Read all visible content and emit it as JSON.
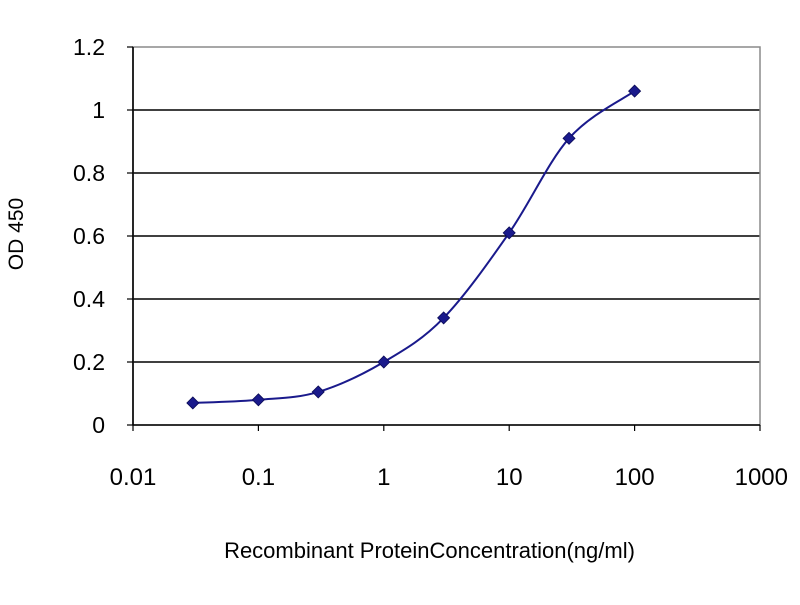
{
  "chart_data": {
    "type": "scatter",
    "title": "",
    "xlabel": "Recombinant ProteinConcentration(ng/ml)",
    "ylabel": "OD 450",
    "xscale": "log",
    "xlim": [
      0.01,
      1000
    ],
    "ylim": [
      0,
      1.2
    ],
    "xticks": [
      "0.01",
      "0.1",
      "1",
      "10",
      "100",
      "1000"
    ],
    "yticks": [
      "0",
      "0.2",
      "0.4",
      "0.6",
      "0.8",
      "1",
      "1.2"
    ],
    "grid": "horizontal",
    "legend": "none",
    "series": [
      {
        "x": [
          0.03,
          0.1,
          0.3,
          1,
          3,
          10,
          30,
          100
        ],
        "y": [
          0.07,
          0.08,
          0.105,
          0.2,
          0.34,
          0.61,
          0.91,
          1.06
        ],
        "marker": "diamond",
        "line": "smooth",
        "color": "#1a1a8c"
      }
    ]
  },
  "colors": {
    "series": "#1a1a8c",
    "grid": "#000000",
    "plot_border": "#8a8a8a"
  }
}
